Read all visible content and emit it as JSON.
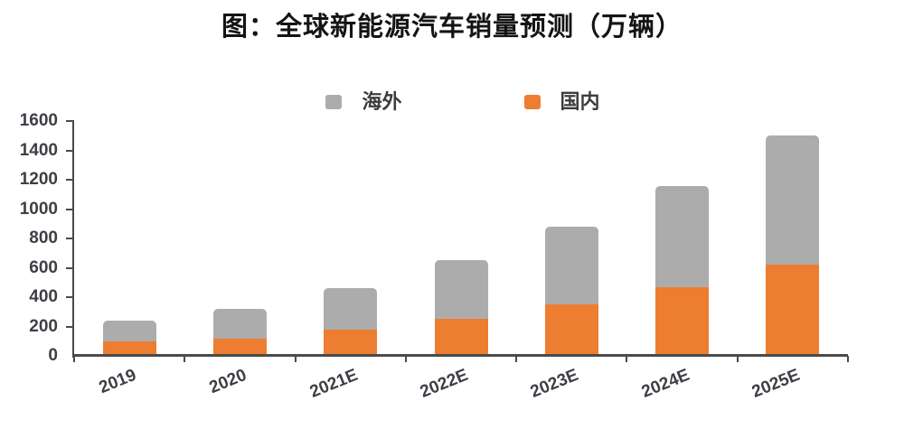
{
  "chart_data": {
    "type": "bar",
    "stacked": true,
    "title": "图：全球新能源汽车销量预测（万辆）",
    "categories": [
      "2019",
      "2020",
      "2021E",
      "2022E",
      "2023E",
      "2024E",
      "2025E"
    ],
    "series": [
      {
        "name": "国内",
        "color": "#ED7D31",
        "values": [
          100,
          120,
          180,
          250,
          350,
          470,
          620
        ]
      },
      {
        "name": "海外",
        "color": "#ACACAC",
        "values": [
          140,
          200,
          280,
          400,
          530,
          690,
          880
        ]
      }
    ],
    "totals": [
      240,
      320,
      460,
      650,
      880,
      1160,
      1500
    ],
    "legend": {
      "position": "top-center",
      "order": [
        "海外",
        "国内"
      ]
    },
    "ylim": [
      0,
      1600
    ],
    "ytick_step": 200,
    "yticks": [
      0,
      200,
      400,
      600,
      800,
      1000,
      1200,
      1400,
      1600
    ],
    "grid": false,
    "xlabel": "",
    "ylabel": ""
  }
}
